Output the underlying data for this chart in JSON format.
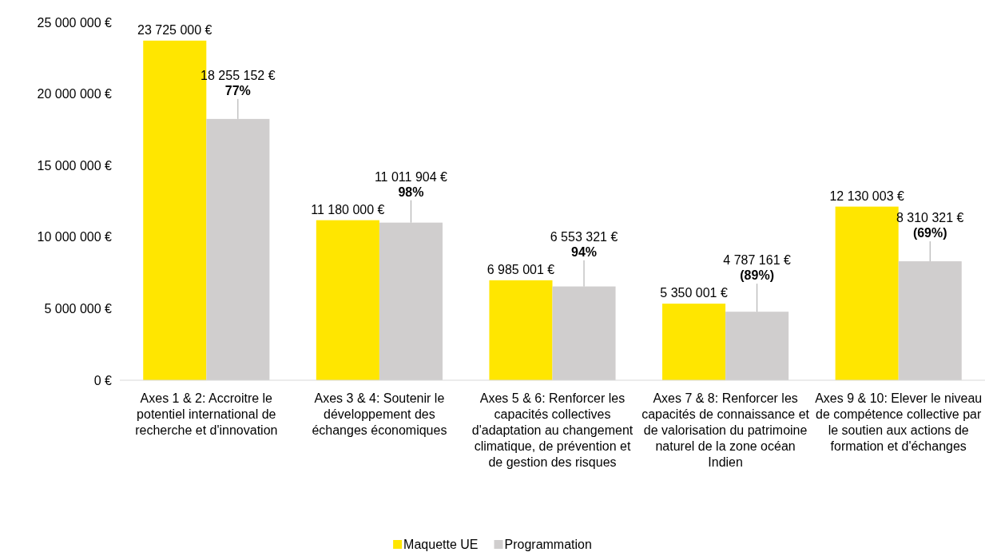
{
  "chart_data": {
    "type": "bar",
    "categories": [
      "Axes 1 & 2: Accroitre le potentiel international de recherche et d'innovation",
      "Axes 3 & 4: Soutenir le développement des échanges économiques",
      "Axes 5 & 6: Renforcer les capacités collectives d'adaptation au changement climatique, de prévention et de gestion des risques",
      "Axes 7 & 8: Renforcer les capacités de connaissance et de valorisation du patrimoine naturel de la zone océan Indien",
      "Axes 9 & 10: Elever le niveau de compétence collective par le soutien aux actions de formation et d'échanges"
    ],
    "series": [
      {
        "name": "Maquette UE",
        "color": "#ffe600",
        "values": [
          23725000,
          11180000,
          6985001,
          5350001,
          12130003
        ],
        "value_labels": [
          "23 725 000 €",
          "11 180 000 €",
          "6 985 001 €",
          "5 350 001 €",
          "12 130 003 €"
        ]
      },
      {
        "name": "Programmation",
        "color": "#d0cece",
        "values": [
          18255152,
          11011904,
          6553321,
          4787161,
          8310321
        ],
        "value_labels": [
          "18 255 152 €\n77%",
          "11 011 904 €\n98%",
          "6 553 321 €\n94%",
          "4 787 161 €\n(89%)",
          "8 310 321 €\n(69%)"
        ]
      }
    ],
    "ylim": [
      0,
      25000000
    ],
    "yticks": [
      {
        "value": 0,
        "label": "0 €"
      },
      {
        "value": 5000000,
        "label": "5 000 000 €"
      },
      {
        "value": 10000000,
        "label": "10 000 000 €"
      },
      {
        "value": 15000000,
        "label": "15 000 000 €"
      },
      {
        "value": 20000000,
        "label": "20 000 000 €"
      },
      {
        "value": 25000000,
        "label": "25 000 000 €"
      }
    ],
    "grid": false,
    "legend": "bottom"
  }
}
